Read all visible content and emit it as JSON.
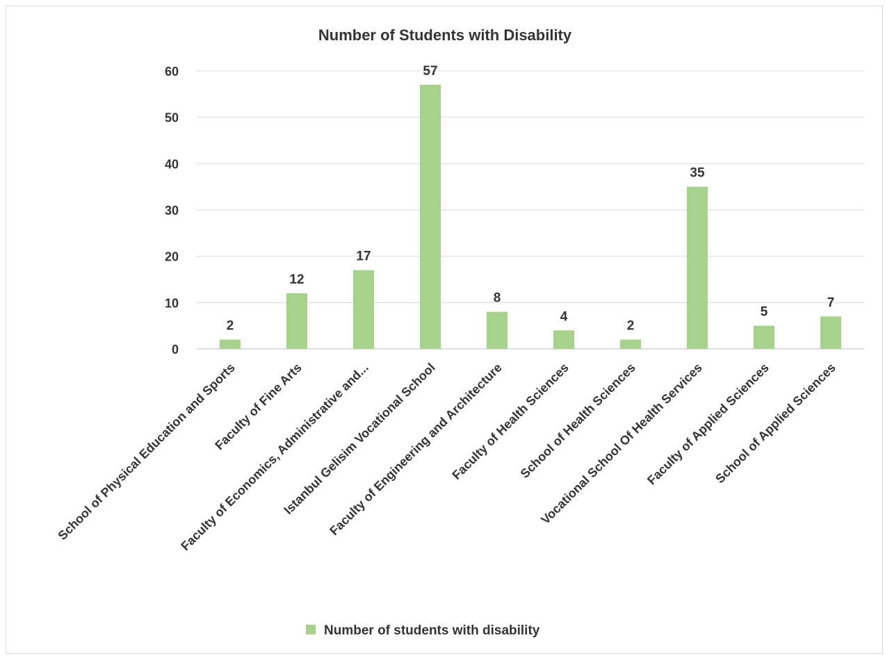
{
  "chart_data": {
    "type": "bar",
    "title": "Number of Students with Disability",
    "xlabel": "",
    "ylabel": "",
    "ylim": [
      0,
      60
    ],
    "yticks": [
      0,
      10,
      20,
      30,
      40,
      50,
      60
    ],
    "grid": true,
    "legend_position": "bottom",
    "categories": [
      "School of Physical Education and Sports",
      "Faculty of Fine Arts",
      "Faculty of Economics, Administrative and...",
      "Istanbul Gelisim Vocational School",
      "Faculty of Engineering and Architecture",
      "Faculty of Health Sciences",
      "School of Health Sciences",
      "Vocational School Of Health Services",
      "Faculty of Applied Sciences",
      "School of Applied Sciences"
    ],
    "series": [
      {
        "name": "Number of students with disability",
        "color": "#a9d18e",
        "values": [
          2,
          12,
          17,
          57,
          8,
          4,
          2,
          35,
          5,
          7
        ]
      }
    ]
  }
}
